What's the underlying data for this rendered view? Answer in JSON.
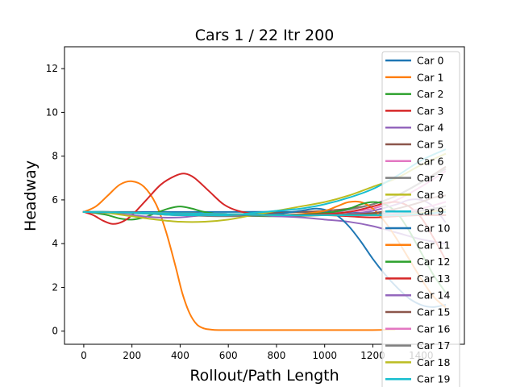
{
  "chart_data": {
    "type": "line",
    "title": "Cars 1 / 22 Itr 200",
    "xlabel": "Rollout/Path Length",
    "ylabel": "Headway",
    "xlim": [
      -80,
      1580
    ],
    "ylim": [
      -0.6,
      13
    ],
    "xticks": [
      0,
      200,
      400,
      600,
      800,
      1000,
      1200,
      1400
    ],
    "yticks": [
      0,
      2,
      4,
      6,
      8,
      10,
      12
    ],
    "legend_position": "upper-right",
    "grid": false,
    "series": [
      {
        "name": "Car 0",
        "color": "#1f77b4",
        "x": [
          0,
          300,
          600,
          900,
          1200,
          1500
        ],
        "y": [
          5.45,
          5.45,
          5.45,
          5.45,
          5.4,
          5.3
        ]
      },
      {
        "name": "Car 1",
        "color": "#ff7f0e",
        "x": [
          0,
          50,
          100,
          150,
          200,
          250,
          300,
          340,
          380,
          410,
          440,
          470,
          500,
          530,
          560,
          600,
          800,
          1000,
          1200,
          1290
        ],
        "y": [
          5.45,
          5.7,
          6.2,
          6.7,
          6.85,
          6.6,
          5.8,
          4.6,
          3.0,
          1.7,
          0.8,
          0.3,
          0.12,
          0.07,
          0.05,
          0.05,
          0.05,
          0.05,
          0.05,
          0.07
        ]
      },
      {
        "name": "Car 2",
        "color": "#2ca02c",
        "x": [
          0,
          50,
          100,
          150,
          200,
          250,
          300,
          350,
          400,
          450,
          500,
          600,
          800,
          1000,
          1200,
          1500
        ],
        "y": [
          5.45,
          5.4,
          5.3,
          5.15,
          5.1,
          5.2,
          5.4,
          5.6,
          5.7,
          5.6,
          5.45,
          5.3,
          5.25,
          5.3,
          5.35,
          5.3
        ]
      },
      {
        "name": "Car 3",
        "color": "#d62728",
        "x": [
          0,
          40,
          80,
          120,
          160,
          200,
          260,
          320,
          380,
          420,
          460,
          520,
          580,
          640,
          720,
          800,
          900,
          1000,
          1100,
          1200,
          1300,
          1400,
          1500
        ],
        "y": [
          5.45,
          5.3,
          5.05,
          4.9,
          5.0,
          5.3,
          6.0,
          6.7,
          7.1,
          7.2,
          7.0,
          6.4,
          5.8,
          5.5,
          5.35,
          5.3,
          5.3,
          5.3,
          5.25,
          5.2,
          5.25,
          5.3,
          5.3
        ]
      },
      {
        "name": "Car 4",
        "color": "#9467bd",
        "x": [
          0,
          100,
          200,
          300,
          400,
          500,
          600,
          700,
          800,
          900,
          1000,
          1100,
          1200,
          1300,
          1400,
          1500
        ],
        "y": [
          5.45,
          5.4,
          5.3,
          5.2,
          5.2,
          5.3,
          5.35,
          5.3,
          5.25,
          5.2,
          5.1,
          5.0,
          4.8,
          4.5,
          4.2,
          4.0
        ]
      },
      {
        "name": "Car 5",
        "color": "#8c564b",
        "x": [
          0,
          100,
          200,
          300,
          400,
          500,
          600,
          700,
          800,
          900,
          1000,
          1100,
          1200,
          1300,
          1400,
          1500
        ],
        "y": [
          5.45,
          5.45,
          5.4,
          5.35,
          5.3,
          5.3,
          5.3,
          5.35,
          5.4,
          5.45,
          5.5,
          5.6,
          5.8,
          6.2,
          6.8,
          7.5
        ]
      },
      {
        "name": "Car 6",
        "color": "#e377c2",
        "x": [
          0,
          200,
          400,
          600,
          800,
          900,
          1000,
          1100,
          1200,
          1300,
          1400,
          1500
        ],
        "y": [
          5.45,
          5.4,
          5.35,
          5.3,
          5.3,
          5.3,
          5.35,
          5.45,
          5.6,
          6.0,
          6.6,
          7.3
        ]
      },
      {
        "name": "Car 7",
        "color": "#7f7f7f",
        "x": [
          0,
          200,
          400,
          600,
          800,
          1000,
          1100,
          1200,
          1300,
          1400,
          1500
        ],
        "y": [
          5.45,
          5.4,
          5.3,
          5.25,
          5.3,
          5.4,
          5.55,
          5.8,
          6.2,
          6.8,
          7.4
        ]
      },
      {
        "name": "Car 8",
        "color": "#bcbd22",
        "x": [
          0,
          100,
          200,
          300,
          400,
          500,
          600,
          700,
          800,
          900,
          1000,
          1100,
          1200,
          1300,
          1400,
          1500
        ],
        "y": [
          5.45,
          5.4,
          5.25,
          5.1,
          5.0,
          5.0,
          5.1,
          5.3,
          5.5,
          5.7,
          5.9,
          6.2,
          6.6,
          7.0,
          7.6,
          8.1
        ]
      },
      {
        "name": "Car 9",
        "color": "#17becf",
        "x": [
          0,
          100,
          200,
          300,
          400,
          500,
          600,
          700,
          800,
          900,
          1000,
          1100,
          1200,
          1300,
          1400,
          1500
        ],
        "y": [
          5.45,
          5.45,
          5.4,
          5.35,
          5.3,
          5.3,
          5.3,
          5.4,
          5.5,
          5.6,
          5.8,
          6.1,
          6.5,
          7.1,
          7.8,
          8.3
        ]
      },
      {
        "name": "Car 10",
        "color": "#1f77b4",
        "x": [
          0,
          300,
          600,
          700,
          800,
          900,
          960,
          1000,
          1050,
          1100,
          1150,
          1200,
          1250,
          1300,
          1350,
          1400,
          1450,
          1500
        ],
        "y": [
          5.45,
          5.4,
          5.35,
          5.3,
          5.35,
          5.5,
          5.6,
          5.55,
          5.3,
          4.8,
          4.1,
          3.3,
          2.6,
          2.0,
          1.5,
          1.2,
          1.1,
          1.2
        ]
      },
      {
        "name": "Car 11",
        "color": "#ff7f0e",
        "x": [
          0,
          300,
          600,
          800,
          900,
          1000,
          1050,
          1100,
          1150,
          1200,
          1250,
          1300,
          1350,
          1400,
          1450,
          1500
        ],
        "y": [
          5.45,
          5.4,
          5.35,
          5.3,
          5.35,
          5.5,
          5.7,
          5.9,
          5.9,
          5.6,
          5.0,
          4.2,
          3.3,
          2.4,
          1.6,
          1.1
        ]
      },
      {
        "name": "Car 12",
        "color": "#2ca02c",
        "x": [
          0,
          300,
          600,
          800,
          1000,
          1100,
          1150,
          1200,
          1250,
          1300,
          1350,
          1400,
          1450,
          1500
        ],
        "y": [
          5.45,
          5.4,
          5.35,
          5.3,
          5.4,
          5.6,
          5.8,
          5.9,
          5.8,
          5.4,
          4.6,
          3.6,
          2.6,
          1.8
        ]
      },
      {
        "name": "Car 13",
        "color": "#d62728",
        "x": [
          0,
          300,
          600,
          800,
          1000,
          1100,
          1200,
          1250,
          1300,
          1350,
          1400,
          1450,
          1500
        ],
        "y": [
          5.45,
          5.4,
          5.35,
          5.3,
          5.35,
          5.45,
          5.7,
          5.85,
          5.9,
          5.7,
          5.2,
          4.3,
          3.3
        ]
      },
      {
        "name": "Car 14",
        "color": "#9467bd",
        "x": [
          0,
          300,
          600,
          800,
          1000,
          1100,
          1200,
          1300,
          1350,
          1400,
          1450,
          1500
        ],
        "y": [
          5.45,
          5.4,
          5.35,
          5.3,
          5.3,
          5.35,
          5.5,
          5.8,
          6.0,
          6.0,
          5.7,
          5.0
        ]
      },
      {
        "name": "Car 15",
        "color": "#8c564b",
        "x": [
          0,
          300,
          600,
          800,
          1000,
          1200,
          1300,
          1400,
          1450,
          1500
        ],
        "y": [
          5.45,
          5.4,
          5.35,
          5.3,
          5.3,
          5.4,
          5.6,
          5.9,
          6.1,
          6.2
        ]
      },
      {
        "name": "Car 16",
        "color": "#e377c2",
        "x": [
          0,
          300,
          600,
          800,
          1000,
          1200,
          1300,
          1400,
          1500
        ],
        "y": [
          5.45,
          5.4,
          5.35,
          5.3,
          5.3,
          5.3,
          5.4,
          5.6,
          5.9
        ]
      },
      {
        "name": "Car 17",
        "color": "#7f7f7f",
        "x": [
          0,
          300,
          600,
          800,
          1000,
          1200,
          1300,
          1400,
          1500
        ],
        "y": [
          5.45,
          5.4,
          5.35,
          5.3,
          5.3,
          5.3,
          5.35,
          5.5,
          5.7
        ]
      },
      {
        "name": "Car 18",
        "color": "#bcbd22",
        "x": [
          0,
          300,
          600,
          800,
          1000,
          1200,
          1300,
          1400,
          1500
        ],
        "y": [
          5.45,
          5.4,
          5.35,
          5.3,
          5.3,
          5.3,
          5.3,
          5.4,
          5.55
        ]
      },
      {
        "name": "Car 19",
        "color": "#17becf",
        "x": [
          0,
          300,
          600,
          800,
          1000,
          1200,
          1300,
          1400,
          1500
        ],
        "y": [
          5.45,
          5.4,
          5.35,
          5.3,
          5.3,
          5.3,
          5.3,
          5.35,
          5.45
        ]
      }
    ]
  }
}
